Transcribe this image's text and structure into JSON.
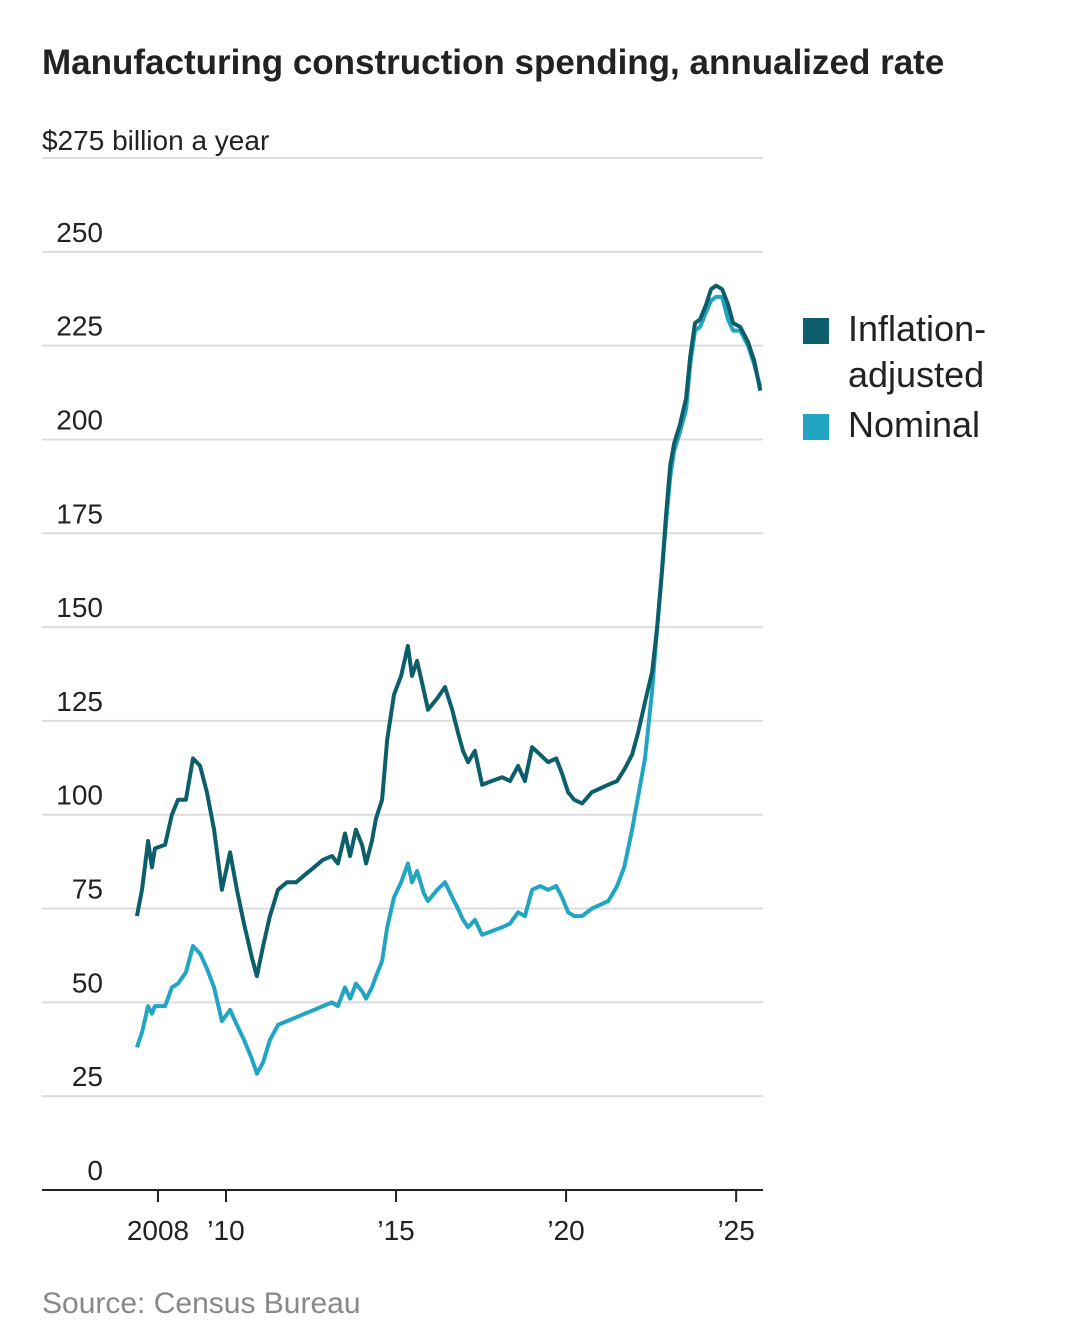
{
  "chart_data": {
    "type": "line",
    "title": "Manufacturing construction spending, annualized rate",
    "source": "Source: Census Bureau",
    "x": [
      2007.38,
      2007.53,
      2007.71,
      2007.82,
      2007.91,
      2008.21,
      2008.41,
      2008.59,
      2008.82,
      2009.03,
      2009.24,
      2009.44,
      2009.65,
      2009.88,
      2010.12,
      2010.32,
      2010.53,
      2010.76,
      2010.91,
      2011.09,
      2011.29,
      2011.53,
      2011.79,
      2012.06,
      2012.32,
      2012.59,
      2012.85,
      2013.12,
      2013.29,
      2013.5,
      2013.65,
      2013.82,
      2014.0,
      2014.12,
      2014.29,
      2014.41,
      2014.59,
      2014.74,
      2014.94,
      2015.15,
      2015.35,
      2015.47,
      2015.62,
      2015.82,
      2015.94,
      2016.21,
      2016.44,
      2016.65,
      2016.82,
      2016.97,
      2017.12,
      2017.32,
      2017.53,
      2017.82,
      2018.12,
      2018.35,
      2018.59,
      2018.79,
      2019.0,
      2019.24,
      2019.47,
      2019.71,
      2019.88,
      2020.06,
      2020.24,
      2020.47,
      2020.76,
      2021.0,
      2021.24,
      2021.5,
      2021.71,
      2021.94,
      2022.12,
      2022.32,
      2022.53,
      2022.68,
      2022.82,
      2022.94,
      2023.06,
      2023.18,
      2023.35,
      2023.53,
      2023.65,
      2023.79,
      2023.94,
      2024.12,
      2024.26,
      2024.41,
      2024.59,
      2024.76,
      2024.91,
      2025.12,
      2025.35,
      2025.53,
      2025.71
    ],
    "series": [
      {
        "name": "Inflation-adjusted",
        "color": "#0d5e6b",
        "values": [
          73,
          80,
          93,
          86,
          91,
          92,
          100,
          104,
          104,
          115,
          113,
          106,
          96,
          80,
          90,
          80,
          71,
          62,
          57,
          65,
          73,
          80,
          82,
          82,
          84,
          86,
          88,
          89,
          87,
          95,
          89,
          96,
          92,
          87,
          93,
          99,
          104,
          120,
          132,
          137,
          145,
          137,
          141,
          133,
          128,
          131,
          134,
          128,
          122,
          117,
          114,
          117,
          108,
          109,
          110,
          109,
          113,
          109,
          118,
          116,
          114,
          115,
          111,
          106,
          104,
          103,
          106,
          107,
          108,
          109,
          112,
          116,
          122,
          130,
          138,
          150,
          165,
          180,
          193,
          199,
          204,
          211,
          222,
          231,
          232,
          236,
          240,
          241,
          240,
          236,
          231,
          230,
          226,
          221,
          213
        ]
      },
      {
        "name": "Nominal",
        "color": "#22a5c2",
        "values": [
          38,
          42,
          49,
          47,
          49,
          49,
          54,
          55,
          58,
          65,
          63,
          59,
          54,
          45,
          48,
          44,
          40,
          35,
          31,
          34,
          40,
          44,
          45,
          46,
          47,
          48,
          49,
          50,
          49,
          54,
          51,
          55,
          53,
          51,
          54,
          57,
          61,
          70,
          78,
          82,
          87,
          82,
          85,
          79,
          77,
          80,
          82,
          78,
          75,
          72,
          70,
          72,
          68,
          69,
          70,
          71,
          74,
          73,
          80,
          81,
          80,
          81,
          78,
          74,
          73,
          73,
          75,
          76,
          77,
          81,
          86,
          96,
          105,
          115,
          133,
          150,
          165,
          178,
          190,
          197,
          202,
          208,
          220,
          229,
          230,
          234,
          237,
          238,
          238,
          232,
          229,
          229,
          225,
          220,
          214
        ]
      }
    ],
    "xlim": [
      2004.59,
      2025.79
    ],
    "xticks": [
      2008,
      {
        "value": 2010,
        "label": "’10"
      },
      {
        "value": 2015,
        "label": "’15"
      },
      {
        "value": 2020,
        "label": "’20"
      },
      {
        "value": 2025,
        "label": "’25"
      }
    ],
    "ylim": [
      0,
      275
    ],
    "yticks": [
      0,
      25,
      50,
      75,
      100,
      125,
      150,
      175,
      200,
      225,
      250,
      {
        "value": 275,
        "label": "$275 billion a year"
      }
    ],
    "grid": true
  }
}
